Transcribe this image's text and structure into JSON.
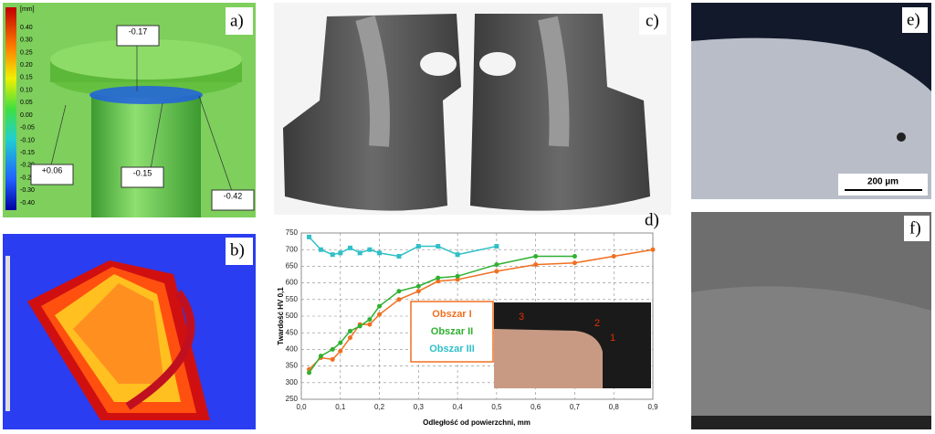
{
  "panel_a": {
    "label": "a)",
    "unit": "[mm]",
    "scale": [
      "0.40",
      "0.30",
      "0.25",
      "0.20",
      "0.15",
      "0.10",
      "0.05",
      "0.00",
      "-0.05",
      "-0.10",
      "-0.15",
      "-0.20",
      "-0.25",
      "-0.30",
      "-0.40"
    ],
    "callouts": [
      "-0.17",
      "+0.06",
      "-0.15",
      "-0.42"
    ]
  },
  "panel_b": {
    "label": "b)"
  },
  "panel_c": {
    "label": "c)"
  },
  "panel_d": {
    "label": "d)",
    "inset_labels": [
      "3",
      "2",
      "1"
    ]
  },
  "panel_e": {
    "label": "e)",
    "scale_bar": "200 µm"
  },
  "panel_f": {
    "label": "f)"
  },
  "chart_data": {
    "type": "line",
    "x_label": "Odległość od powierzchni, mm",
    "y_label": "Twardość HV 0,1",
    "xlim": [
      0,
      0.9
    ],
    "xticks": [
      {
        "value": 0,
        "label": "0,0"
      },
      {
        "value": 0.1,
        "label": "0,1"
      },
      {
        "value": 0.2,
        "label": "0,2"
      },
      {
        "value": 0.3,
        "label": "0,3"
      },
      {
        "value": 0.4,
        "label": "0,4"
      },
      {
        "value": 0.5,
        "label": "0,5"
      },
      {
        "value": 0.6,
        "label": "0,6"
      },
      {
        "value": 0.7,
        "label": "0,7"
      },
      {
        "value": 0.8,
        "label": "0,8"
      },
      {
        "value": 0.9,
        "label": "0,9"
      }
    ],
    "ylim": [
      250,
      750
    ],
    "yticks": [
      250,
      300,
      350,
      400,
      450,
      500,
      550,
      600,
      650,
      700,
      750
    ],
    "grid": true,
    "series": [
      {
        "name": "Obszar I",
        "color": "#f07020",
        "x": [
          0.02,
          0.05,
          0.08,
          0.1,
          0.125,
          0.15,
          0.175,
          0.2,
          0.25,
          0.3,
          0.35,
          0.4,
          0.5,
          0.6,
          0.7,
          0.8,
          0.9
        ],
        "values": [
          340,
          375,
          370,
          395,
          435,
          475,
          475,
          505,
          550,
          575,
          605,
          610,
          635,
          655,
          660,
          680,
          700
        ]
      },
      {
        "name": "Obszar II",
        "color": "#30b030",
        "x": [
          0.02,
          0.05,
          0.08,
          0.1,
          0.125,
          0.15,
          0.175,
          0.2,
          0.25,
          0.3,
          0.35,
          0.4,
          0.5,
          0.6,
          0.7
        ],
        "values": [
          330,
          380,
          400,
          420,
          455,
          470,
          490,
          530,
          575,
          590,
          615,
          620,
          655,
          680,
          680
        ]
      },
      {
        "name": "Obszar III",
        "color": "#30c0c8",
        "x": [
          0.02,
          0.05,
          0.08,
          0.1,
          0.125,
          0.15,
          0.175,
          0.2,
          0.25,
          0.3,
          0.35,
          0.4,
          0.5
        ],
        "values": [
          738,
          700,
          685,
          690,
          705,
          690,
          700,
          690,
          680,
          710,
          710,
          685,
          710
        ]
      }
    ]
  }
}
